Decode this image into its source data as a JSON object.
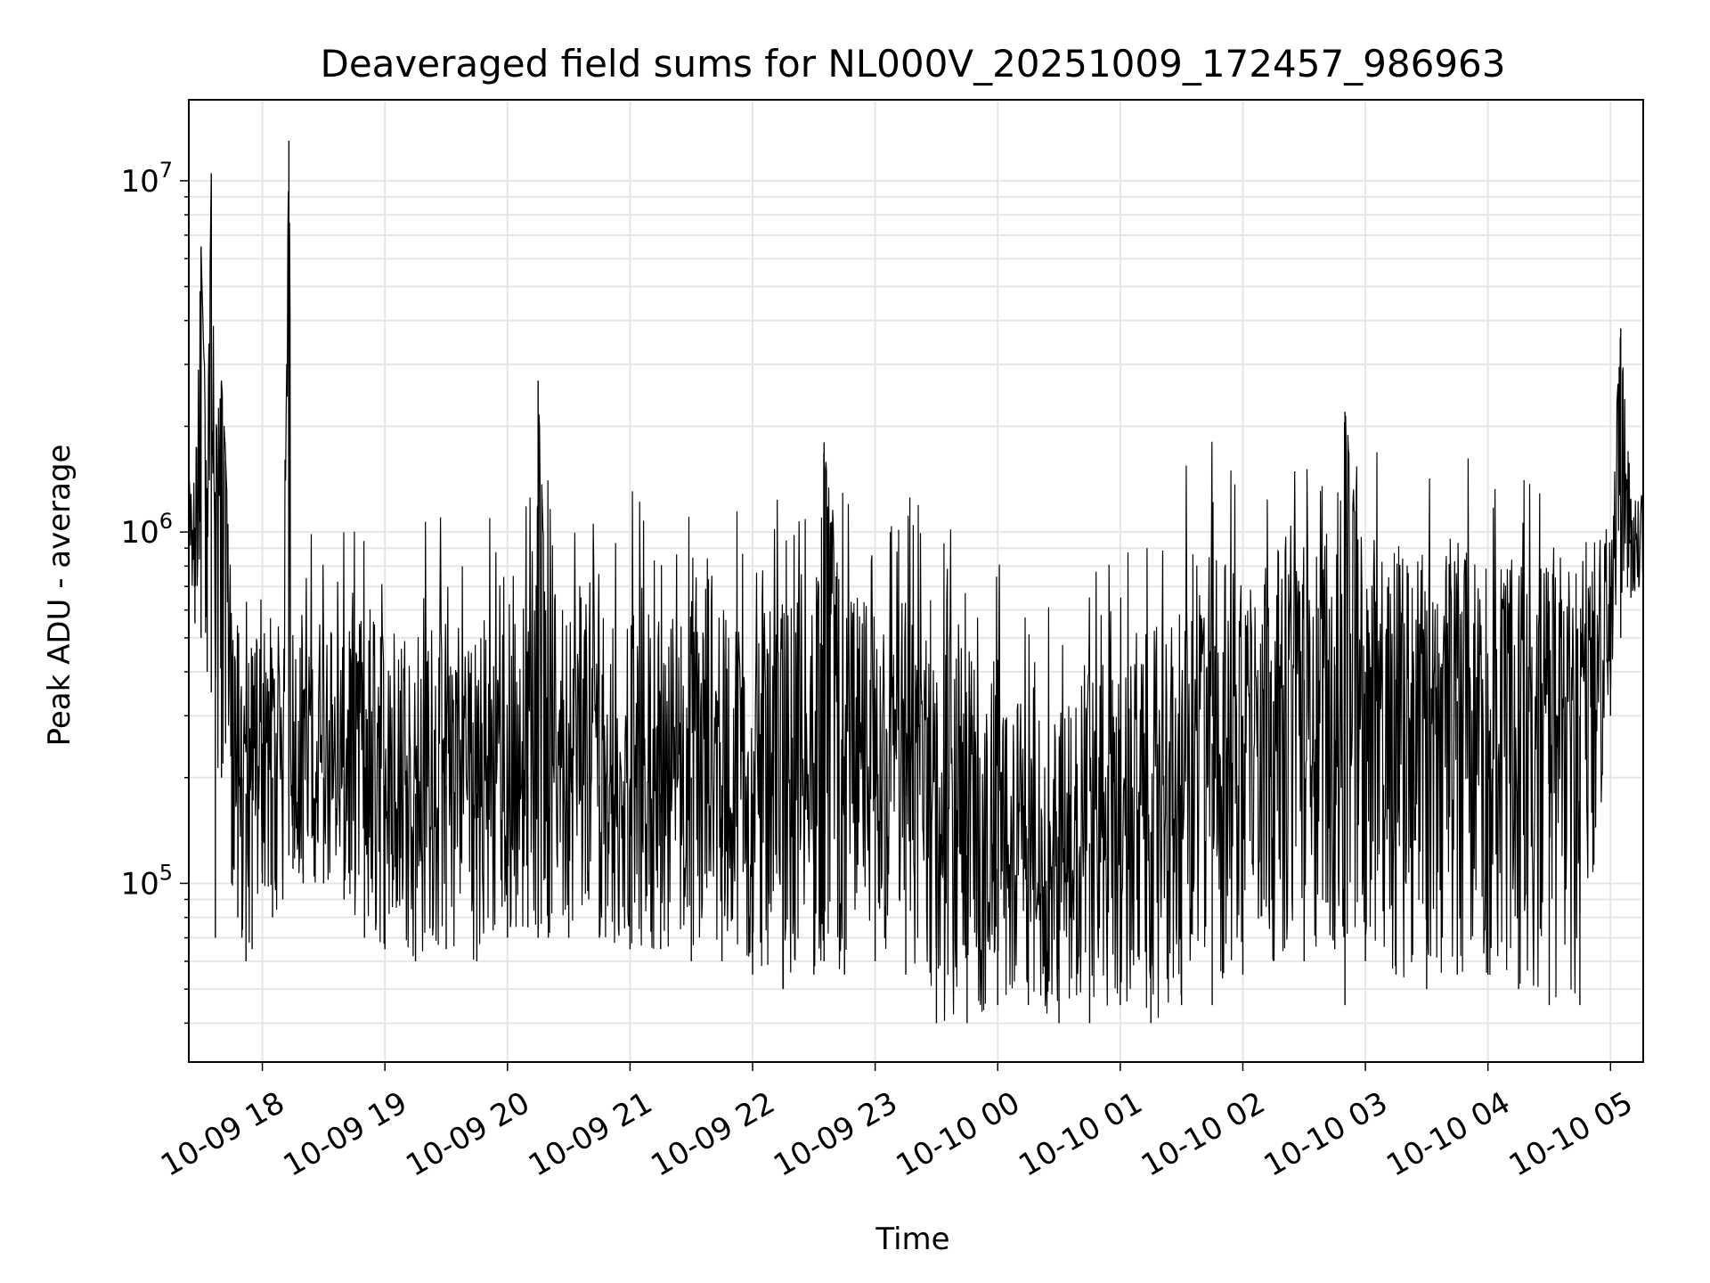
{
  "chart_data": {
    "type": "line",
    "title": "Deaveraged field sums for NL000V_20251009_172457_986963",
    "xlabel": "Time",
    "ylabel": "Peak ADU - average",
    "y_scale": "log",
    "grid": true,
    "grid_minor": true,
    "legend": "none",
    "line_color": "#000000",
    "xlim": [
      "2025-10-09 17:24",
      "2025-10-10 05:16"
    ],
    "ylim": [
      31000,
      17000000
    ],
    "x_ticks": [
      {
        "value": "2025-10-09 18:00",
        "label": "10-09 18"
      },
      {
        "value": "2025-10-09 19:00",
        "label": "10-09 19"
      },
      {
        "value": "2025-10-09 20:00",
        "label": "10-09 20"
      },
      {
        "value": "2025-10-09 21:00",
        "label": "10-09 21"
      },
      {
        "value": "2025-10-09 22:00",
        "label": "10-09 22"
      },
      {
        "value": "2025-10-09 23:00",
        "label": "10-09 23"
      },
      {
        "value": "2025-10-10 00:00",
        "label": "10-10 00"
      },
      {
        "value": "2025-10-10 01:00",
        "label": "10-10 01"
      },
      {
        "value": "2025-10-10 02:00",
        "label": "10-10 02"
      },
      {
        "value": "2025-10-10 03:00",
        "label": "10-10 03"
      },
      {
        "value": "2025-10-10 04:00",
        "label": "10-10 04"
      },
      {
        "value": "2025-10-10 05:00",
        "label": "10-10 05"
      }
    ],
    "y_ticks": [
      {
        "value": 100000,
        "base": "10",
        "exp": "5"
      },
      {
        "value": 1000000,
        "base": "10",
        "exp": "6"
      },
      {
        "value": 10000000,
        "base": "10",
        "exp": "7"
      }
    ],
    "series": [
      {
        "x": [
          "2025-10-09 17:24",
          "2025-10-09 17:27",
          "2025-10-09 17:30",
          "2025-10-09 17:33",
          "2025-10-09 17:35",
          "2025-10-09 17:37",
          "2025-10-09 17:40",
          "2025-10-09 17:42",
          "2025-10-09 17:45",
          "2025-10-09 17:48",
          "2025-10-09 17:50",
          "2025-10-09 17:52",
          "2025-10-09 17:55",
          "2025-10-09 18:00",
          "2025-10-09 18:05",
          "2025-10-09 18:10",
          "2025-10-09 18:13",
          "2025-10-09 18:15",
          "2025-10-09 18:20",
          "2025-10-09 18:30",
          "2025-10-09 18:40",
          "2025-10-09 18:50",
          "2025-10-09 19:00",
          "2025-10-09 19:15",
          "2025-10-09 19:30",
          "2025-10-09 19:45",
          "2025-10-09 20:00",
          "2025-10-09 20:10",
          "2025-10-09 20:15",
          "2025-10-09 20:20",
          "2025-10-09 20:30",
          "2025-10-09 20:45",
          "2025-10-09 21:00",
          "2025-10-09 21:15",
          "2025-10-09 21:30",
          "2025-10-09 21:45",
          "2025-10-09 22:00",
          "2025-10-09 22:15",
          "2025-10-09 22:30",
          "2025-10-09 22:35",
          "2025-10-09 22:45",
          "2025-10-09 23:00",
          "2025-10-09 23:15",
          "2025-10-09 23:30",
          "2025-10-09 23:45",
          "2025-10-10 00:00",
          "2025-10-10 00:15",
          "2025-10-10 00:30",
          "2025-10-10 00:45",
          "2025-10-10 01:00",
          "2025-10-10 01:15",
          "2025-10-10 01:30",
          "2025-10-10 01:45",
          "2025-10-10 02:00",
          "2025-10-10 02:15",
          "2025-10-10 02:30",
          "2025-10-10 02:45",
          "2025-10-10 02:50",
          "2025-10-10 03:00",
          "2025-10-10 03:15",
          "2025-10-10 03:30",
          "2025-10-10 03:45",
          "2025-10-10 04:00",
          "2025-10-10 04:15",
          "2025-10-10 04:30",
          "2025-10-10 04:45",
          "2025-10-10 05:00",
          "2025-10-10 05:05",
          "2025-10-10 05:10",
          "2025-10-10 05:16"
        ],
        "y": [
          1000000,
          900000,
          6500000,
          1200000,
          10500000,
          1300000,
          2700000,
          1600000,
          450000,
          300000,
          200000,
          180000,
          220000,
          250000,
          200000,
          210000,
          13000000,
          200000,
          190000,
          200000,
          210000,
          200000,
          190000,
          180000,
          190000,
          180000,
          170000,
          200000,
          2700000,
          200000,
          180000,
          190000,
          190000,
          180000,
          200000,
          190000,
          180000,
          200000,
          220000,
          1800000,
          230000,
          210000,
          200000,
          150000,
          120000,
          110000,
          100000,
          120000,
          130000,
          130000,
          140000,
          180000,
          250000,
          300000,
          330000,
          380000,
          420000,
          2200000,
          400000,
          380000,
          350000,
          330000,
          320000,
          310000,
          300000,
          300000,
          700000,
          3800000,
          950000,
          1000000
        ],
        "y_min": [
          600000,
          550000,
          500000,
          400000,
          350000,
          70000,
          200000,
          250000,
          100000,
          80000,
          70000,
          60000,
          65000,
          100000,
          80000,
          90000,
          120000,
          110000,
          100000,
          100000,
          90000,
          70000,
          65000,
          60000,
          65000,
          60000,
          70000,
          75000,
          70000,
          70000,
          70000,
          70000,
          65000,
          65000,
          60000,
          60000,
          55000,
          50000,
          55000,
          60000,
          55000,
          60000,
          55000,
          40000,
          40000,
          45000,
          45000,
          40000,
          40000,
          45000,
          40000,
          45000,
          45000,
          55000,
          60000,
          60000,
          65000,
          45000,
          60000,
          55000,
          50000,
          55000,
          55000,
          50000,
          45000,
          45000,
          300000,
          500000,
          650000,
          700000
        ],
        "y_max": [
          1800000,
          1600000,
          6500000,
          2000000,
          10500000,
          2800000,
          2700000,
          1800000,
          900000,
          800000,
          800000,
          750000,
          800000,
          1000000,
          900000,
          850000,
          13000000,
          900000,
          950000,
          1300000,
          1000000,
          1200000,
          1100000,
          1200000,
          1250000,
          1300000,
          1300000,
          1400000,
          2700000,
          1450000,
          1400000,
          1400000,
          1350000,
          1350000,
          1300000,
          1300000,
          1300000,
          1250000,
          1400000,
          1800000,
          1300000,
          1400000,
          1400000,
          1300000,
          1200000,
          1100000,
          650000,
          600000,
          1100000,
          1000000,
          900000,
          1500000,
          2100000,
          1600000,
          1700000,
          1800000,
          1900000,
          2200000,
          1750000,
          1800000,
          1750000,
          1700000,
          1650000,
          1600000,
          1600000,
          1550000,
          1500000,
          3800000,
          1500000,
          1550000
        ]
      }
    ]
  }
}
